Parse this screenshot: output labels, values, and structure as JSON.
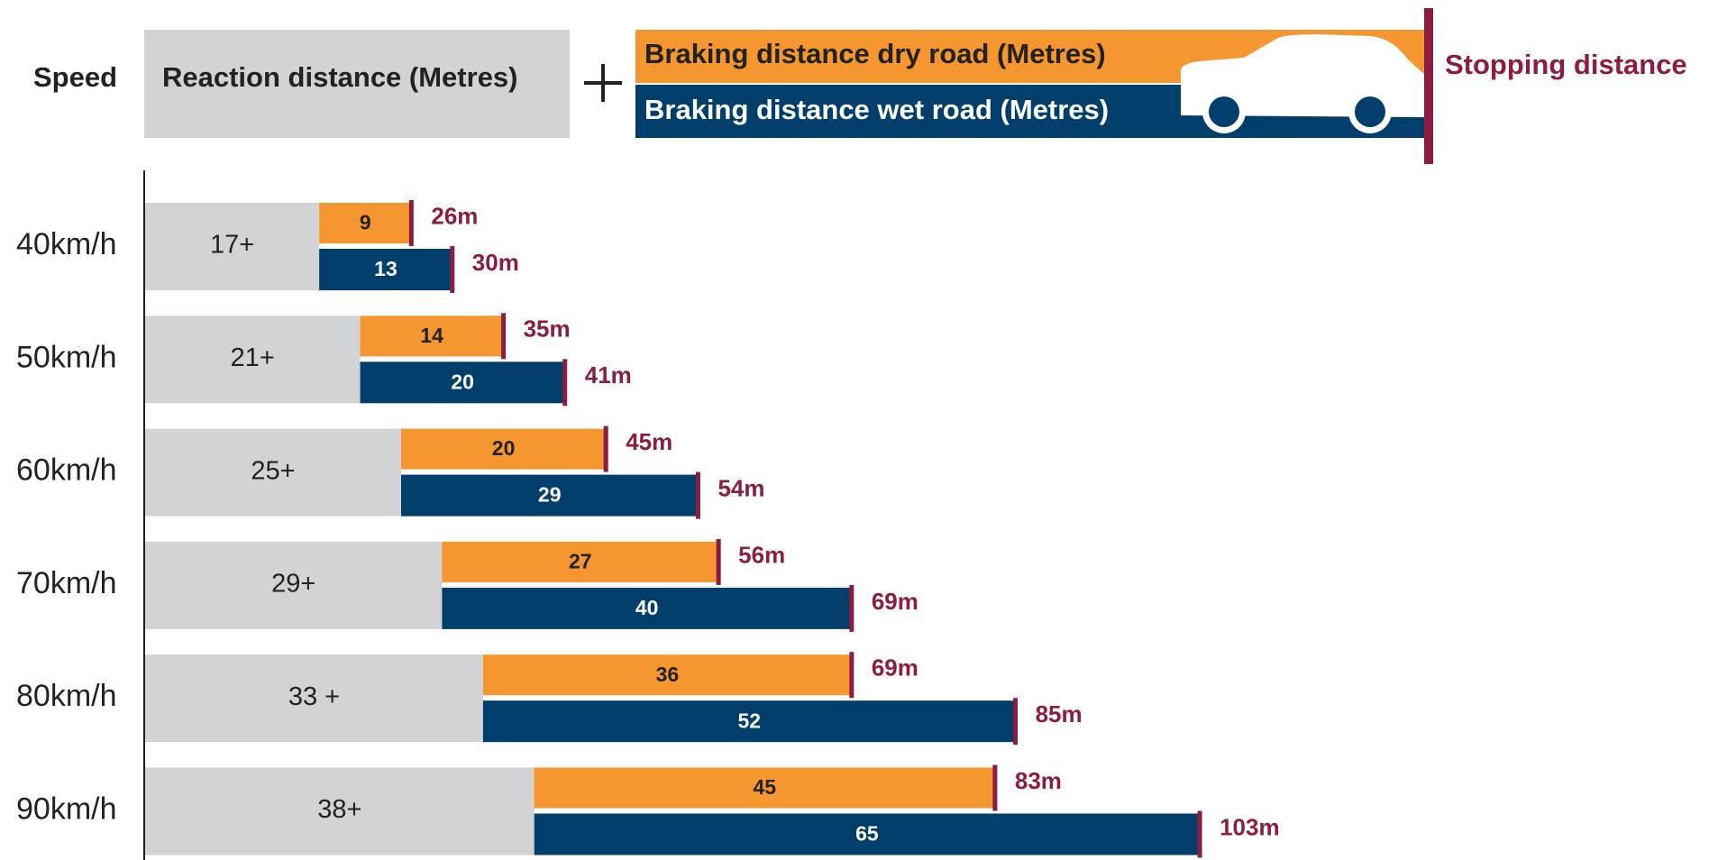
{
  "chart_data": {
    "type": "bar",
    "category_title": "Speed",
    "categories": [
      "40km/h",
      "50km/h",
      "60km/h",
      "70km/h",
      "80km/h",
      "90km/h"
    ],
    "series": [
      {
        "name": "Reaction distance (Metres)",
        "color": "#d1d3d4",
        "values": [
          17,
          21,
          25,
          29,
          33,
          38
        ],
        "value_labels": [
          "17+",
          "21+",
          "25+",
          "29+",
          "33 +",
          "38+"
        ]
      },
      {
        "name": "Braking distance dry road (Metres)",
        "color": "#f6962e",
        "values": [
          9,
          14,
          20,
          27,
          36,
          45
        ]
      },
      {
        "name": "Braking distance wet road (Metres)",
        "color": "#003e6b",
        "values": [
          13,
          20,
          29,
          40,
          52,
          65
        ]
      }
    ],
    "stopping": {
      "name": "Stopping distance",
      "color": "#8c1d40",
      "dry": {
        "values": [
          26,
          35,
          45,
          56,
          69,
          83
        ],
        "value_labels": [
          "26m",
          "35m",
          "45m",
          "56m",
          "69m",
          "83m"
        ]
      },
      "wet": {
        "values": [
          30,
          41,
          54,
          69,
          85,
          103
        ],
        "value_labels": [
          "30m",
          "41m",
          "54m",
          "69m",
          "85m",
          "103m"
        ]
      }
    }
  }
}
